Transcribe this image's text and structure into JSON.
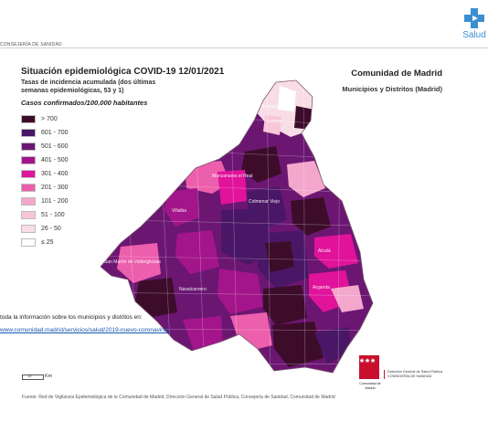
{
  "header": {
    "org_left": "CONSEJERÍA DE SANIDAD",
    "brand": "Salud",
    "brand_color": "#3b8fd0"
  },
  "map": {
    "title": "Situación epidemiológica COVID-19 12/01/2021",
    "subtitle": "Tasas de incidencia acumulada (dos últimas semanas epidemiológicas, 53 y 1)",
    "legend_title": "Casos confirmados/100.000 habitantes",
    "region_name": "Comunidad de Madrid",
    "region_sub": "Municipios y Distritos (Madrid)",
    "legend": [
      {
        "label": "> 700",
        "color": "#3d0c2a"
      },
      {
        "label": "601 - 700",
        "color": "#4a1766"
      },
      {
        "label": "501 - 600",
        "color": "#6b1772"
      },
      {
        "label": "401 - 500",
        "color": "#a3158a"
      },
      {
        "label": "301 - 400",
        "color": "#e0139a"
      },
      {
        "label": "201 - 300",
        "color": "#ec5fac"
      },
      {
        "label": "101 - 200",
        "color": "#f4a7cc"
      },
      {
        "label": "51 - 100",
        "color": "#f7c6d8"
      },
      {
        "label": "26 - 50",
        "color": "#f8dde6"
      },
      {
        "label": "≤ 25",
        "color": "#ffffff"
      }
    ],
    "place_labels": {
      "buitrago": "Buitrago",
      "lozoya": "Lozoya",
      "manzanares": "Manzanares el Real",
      "colmenar": "Colmenar Viejo",
      "villalba": "Villalba",
      "navalcarnero": "Navalcarnero",
      "alcala": "Alcalá",
      "arganda": "Arganda",
      "san_martin": "San Martín de Valdeiglesias"
    }
  },
  "footer": {
    "info_text": "toda la información sobre los municipios y distritos en:",
    "info_link": "www.comunidad.madrid/servicios/salud/2019-nuevo-coronavirus",
    "scale_num": "10",
    "scale_unit": "Km",
    "flag_caption": "Comunidad de Madrid",
    "agency_line1": "Dirección General de Salud Pública",
    "agency_line2": "CONSEJERÍA DE SANIDAD",
    "source": "Fuente: Red de Vigilancia Epidemiológica de la Comunidad de Madrid, Dirección General de Salud Pública, Consejería de Sanidad, Comunidad de Madrid"
  }
}
